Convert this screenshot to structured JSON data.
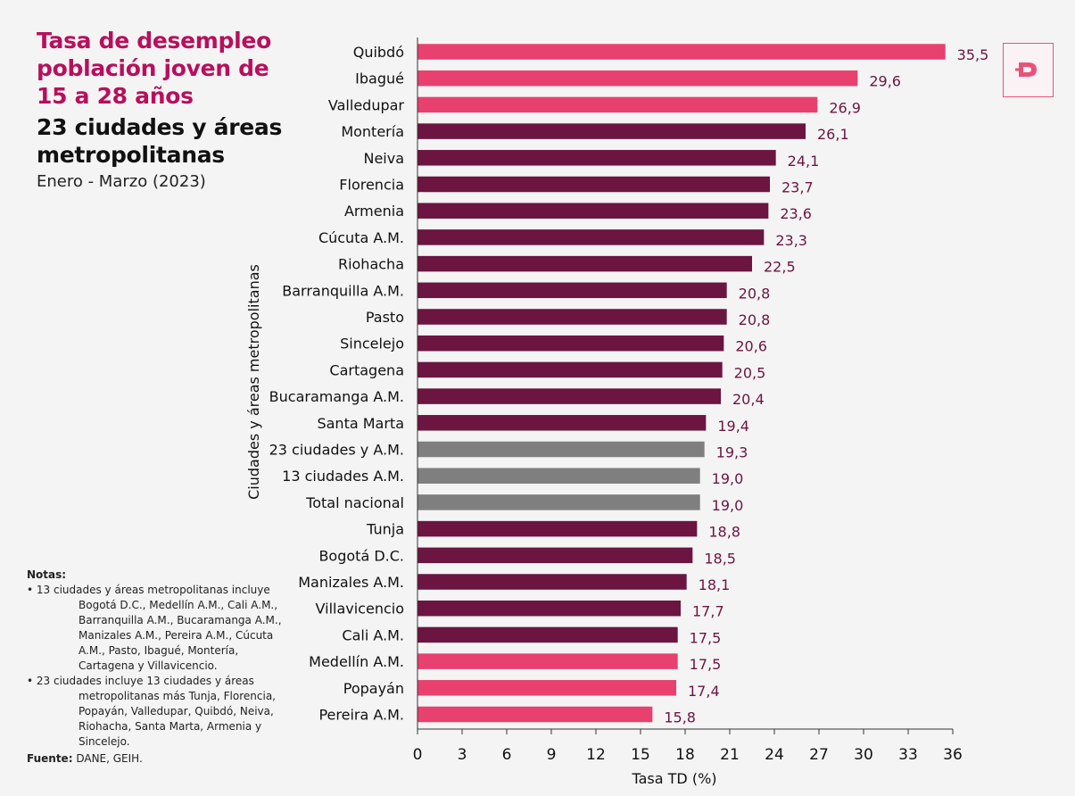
{
  "title": {
    "main": "Tasa de desempleo población joven de 15 a 28 años",
    "sub": "23 ciudades y áreas metropolitanas",
    "period": "Enero - Marzo (2023)"
  },
  "notes": {
    "heading": "Notas:",
    "items": [
      "• 13 ciudades y áreas metropolitanas incluye Bogotá D.C., Medellín A.M., Cali A.M., Barranquilla A.M., Bucaramanga A.M., Manizales A.M., Pereira A.M., Cúcuta A.M., Pasto, Ibagué, Montería, Cartagena y Villavicencio.",
      "• 23 ciudades incluye 13 ciudades y áreas metropolitanas más Tunja, Florencia, Popayán, Valledupar, Quibdó, Neiva, Riohacha, Santa Marta, Armenia y Sincelejo."
    ],
    "source_label": "Fuente:",
    "source_text": "DANE, GEIH."
  },
  "logo": {
    "icon": "brand-d-icon",
    "color": "#e8537a"
  },
  "colors": {
    "highlight": "#e8406f",
    "city": "#6b1540",
    "aggregate": "#7f7f7f"
  },
  "chart_data": {
    "type": "bar",
    "orientation": "horizontal",
    "xlabel": "Tasa TD (%)",
    "ylabel": "Ciudades y áreas metropolitanas",
    "xlim": [
      0,
      36
    ],
    "xticks": [
      0,
      3,
      6,
      9,
      12,
      15,
      18,
      21,
      24,
      27,
      30,
      33,
      36
    ],
    "decimal_separator": ",",
    "categories": [
      "Quibdó",
      "Ibagué",
      "Valledupar",
      "Montería",
      "Neiva",
      "Florencia",
      "Armenia",
      "Cúcuta A.M.",
      "Riohacha",
      "Barranquilla A.M.",
      "Pasto",
      "Sincelejo",
      "Cartagena",
      "Bucaramanga A.M.",
      "Santa Marta",
      "23 ciudades y A.M.",
      "13 ciudades A.M.",
      "Total nacional",
      "Tunja",
      "Bogotá D.C.",
      "Manizales A.M.",
      "Villavicencio",
      "Cali A.M.",
      "Medellín A.M.",
      "Popayán",
      "Pereira A.M."
    ],
    "values": [
      35.5,
      29.6,
      26.9,
      26.1,
      24.1,
      23.7,
      23.6,
      23.3,
      22.5,
      20.8,
      20.8,
      20.6,
      20.5,
      20.4,
      19.4,
      19.3,
      19.0,
      19.0,
      18.8,
      18.5,
      18.1,
      17.7,
      17.5,
      17.5,
      17.4,
      15.8
    ],
    "groups": [
      "highlight",
      "highlight",
      "highlight",
      "city",
      "city",
      "city",
      "city",
      "city",
      "city",
      "city",
      "city",
      "city",
      "city",
      "city",
      "city",
      "aggregate",
      "aggregate",
      "aggregate",
      "city",
      "city",
      "city",
      "city",
      "city",
      "highlight",
      "highlight",
      "highlight"
    ]
  }
}
